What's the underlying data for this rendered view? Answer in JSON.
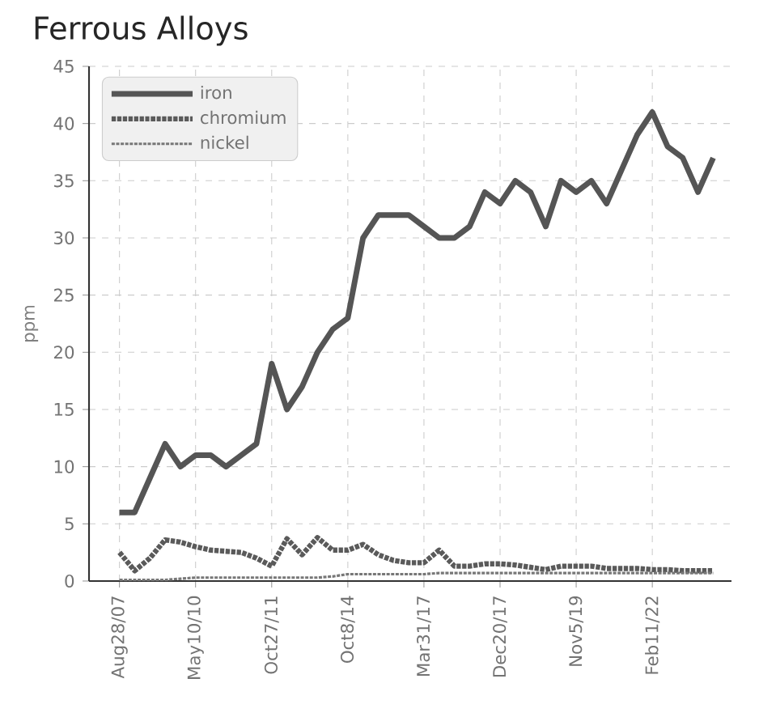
{
  "chart_data": {
    "type": "line",
    "title": "Ferrous Alloys",
    "ylabel": "ppm",
    "categories": [
      "Aug28/07",
      null,
      null,
      null,
      null,
      "May10/10",
      null,
      null,
      null,
      null,
      "Oct27/11",
      null,
      null,
      null,
      null,
      "Oct8/14",
      null,
      null,
      null,
      null,
      "Mar31/17",
      null,
      null,
      null,
      null,
      "Dec20/17",
      null,
      null,
      null,
      null,
      "Nov5/19",
      null,
      null,
      null,
      null,
      "Feb11/22",
      null,
      null,
      null,
      null
    ],
    "series": [
      {
        "name": "iron",
        "color": "#555555",
        "line_style": "solid",
        "values": [
          6,
          6,
          9,
          12,
          10,
          11,
          11,
          10,
          11,
          12,
          19,
          15,
          17,
          20,
          22,
          23,
          30,
          32,
          32,
          32,
          31,
          30,
          30,
          31,
          34,
          33,
          35,
          34,
          31,
          35,
          34,
          35,
          33,
          36,
          39,
          41,
          38,
          37,
          34,
          37
        ]
      },
      {
        "name": "chromium",
        "color": "#5a5a5a",
        "line_style": "dashed",
        "values": [
          2.5,
          0.9,
          2,
          3.6,
          3.4,
          3,
          2.7,
          2.6,
          2.5,
          2,
          1.3,
          3.7,
          2.3,
          3.8,
          2.7,
          2.7,
          3.2,
          2.3,
          1.8,
          1.6,
          1.6,
          2.7,
          1.3,
          1.3,
          1.5,
          1.5,
          1.4,
          1.2,
          1,
          1.3,
          1.3,
          1.3,
          1.1,
          1.1,
          1.1,
          1,
          1,
          0.9,
          0.9,
          0.9
        ]
      },
      {
        "name": "nickel",
        "color": "#777777",
        "line_style": "dotted",
        "values": [
          0.1,
          0.1,
          0.1,
          0.1,
          0.2,
          0.3,
          0.3,
          0.3,
          0.3,
          0.3,
          0.3,
          0.3,
          0.3,
          0.3,
          0.4,
          0.6,
          0.6,
          0.6,
          0.6,
          0.6,
          0.6,
          0.7,
          0.7,
          0.7,
          0.7,
          0.7,
          0.7,
          0.7,
          0.7,
          0.7,
          0.7,
          0.7,
          0.7,
          0.7,
          0.7,
          0.7,
          0.7,
          0.7,
          0.7,
          0.7
        ]
      }
    ],
    "ylim": [
      0,
      45
    ],
    "yticks": [
      0,
      5,
      10,
      15,
      20,
      25,
      30,
      35,
      40,
      45
    ],
    "grid": true,
    "legend": "top left",
    "marker": "none"
  }
}
